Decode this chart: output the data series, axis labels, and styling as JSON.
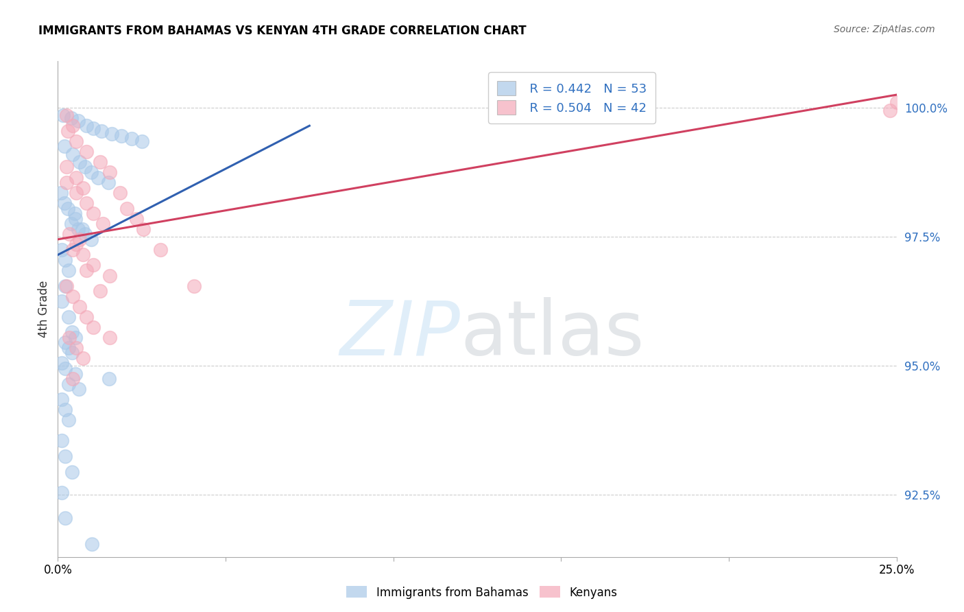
{
  "title": "IMMIGRANTS FROM BAHAMAS VS KENYAN 4TH GRADE CORRELATION CHART",
  "source": "Source: ZipAtlas.com",
  "ylabel": "4th Grade",
  "yticks": [
    100.0,
    97.5,
    95.0,
    92.5
  ],
  "ytick_labels": [
    "100.0%",
    "97.5%",
    "95.0%",
    "92.5%"
  ],
  "xmin": 0.0,
  "xmax": 25.0,
  "ymin": 91.3,
  "ymax": 100.9,
  "legend_r_blue": "R = 0.442",
  "legend_n_blue": "N = 53",
  "legend_r_pink": "R = 0.504",
  "legend_n_pink": "N = 42",
  "blue_color": "#a8c8e8",
  "pink_color": "#f4a8b8",
  "blue_line_color": "#3060b0",
  "pink_line_color": "#d04060",
  "blue_scatter": [
    [
      0.15,
      99.85
    ],
    [
      0.4,
      99.8
    ],
    [
      0.6,
      99.75
    ],
    [
      0.85,
      99.65
    ],
    [
      1.05,
      99.6
    ],
    [
      1.3,
      99.55
    ],
    [
      1.6,
      99.5
    ],
    [
      1.9,
      99.45
    ],
    [
      2.2,
      99.4
    ],
    [
      2.5,
      99.35
    ],
    [
      0.2,
      99.25
    ],
    [
      0.45,
      99.1
    ],
    [
      0.65,
      98.95
    ],
    [
      0.8,
      98.85
    ],
    [
      1.0,
      98.75
    ],
    [
      1.2,
      98.65
    ],
    [
      1.5,
      98.55
    ],
    [
      0.1,
      98.35
    ],
    [
      0.2,
      98.15
    ],
    [
      0.3,
      98.05
    ],
    [
      0.5,
      97.95
    ],
    [
      0.4,
      97.75
    ],
    [
      0.6,
      97.65
    ],
    [
      0.8,
      97.55
    ],
    [
      1.0,
      97.45
    ],
    [
      0.12,
      97.25
    ],
    [
      0.22,
      97.05
    ],
    [
      0.32,
      96.85
    ],
    [
      0.52,
      97.85
    ],
    [
      0.72,
      97.65
    ],
    [
      0.22,
      96.55
    ],
    [
      0.12,
      96.25
    ],
    [
      0.32,
      95.95
    ],
    [
      0.42,
      95.65
    ],
    [
      0.52,
      95.55
    ],
    [
      0.22,
      95.45
    ],
    [
      0.32,
      95.35
    ],
    [
      0.42,
      95.25
    ],
    [
      0.12,
      95.05
    ],
    [
      0.22,
      94.95
    ],
    [
      0.52,
      94.85
    ],
    [
      0.32,
      94.65
    ],
    [
      0.62,
      94.55
    ],
    [
      0.12,
      94.35
    ],
    [
      0.22,
      94.15
    ],
    [
      0.32,
      93.95
    ],
    [
      0.12,
      93.55
    ],
    [
      0.22,
      93.25
    ],
    [
      0.42,
      92.95
    ],
    [
      1.52,
      94.75
    ],
    [
      0.12,
      92.55
    ],
    [
      0.22,
      92.05
    ],
    [
      1.02,
      91.55
    ]
  ],
  "pink_scatter": [
    [
      0.3,
      99.55
    ],
    [
      0.55,
      99.35
    ],
    [
      0.85,
      99.15
    ],
    [
      1.25,
      98.95
    ],
    [
      1.55,
      98.75
    ],
    [
      0.25,
      98.55
    ],
    [
      0.55,
      98.35
    ],
    [
      0.85,
      98.15
    ],
    [
      1.05,
      97.95
    ],
    [
      1.35,
      97.75
    ],
    [
      0.35,
      97.55
    ],
    [
      0.55,
      97.35
    ],
    [
      0.75,
      97.15
    ],
    [
      1.05,
      96.95
    ],
    [
      1.55,
      96.75
    ],
    [
      0.25,
      96.55
    ],
    [
      0.45,
      96.35
    ],
    [
      0.65,
      96.15
    ],
    [
      0.85,
      95.95
    ],
    [
      1.05,
      95.75
    ],
    [
      0.35,
      95.55
    ],
    [
      0.55,
      95.35
    ],
    [
      0.75,
      95.15
    ],
    [
      25.0,
      100.1
    ],
    [
      24.8,
      99.95
    ],
    [
      0.25,
      99.85
    ],
    [
      0.45,
      99.65
    ],
    [
      1.85,
      98.35
    ],
    [
      2.05,
      98.05
    ],
    [
      2.55,
      97.65
    ],
    [
      3.05,
      97.25
    ],
    [
      0.65,
      97.45
    ],
    [
      0.45,
      97.25
    ],
    [
      0.85,
      96.85
    ],
    [
      1.25,
      96.45
    ],
    [
      0.25,
      98.85
    ],
    [
      0.55,
      98.65
    ],
    [
      0.75,
      98.45
    ],
    [
      2.35,
      97.85
    ],
    [
      4.05,
      96.55
    ],
    [
      0.45,
      94.75
    ],
    [
      1.55,
      95.55
    ]
  ],
  "blue_trendline": [
    [
      0.0,
      97.15
    ],
    [
      7.5,
      99.65
    ]
  ],
  "pink_trendline": [
    [
      0.0,
      97.45
    ],
    [
      25.0,
      100.25
    ]
  ]
}
